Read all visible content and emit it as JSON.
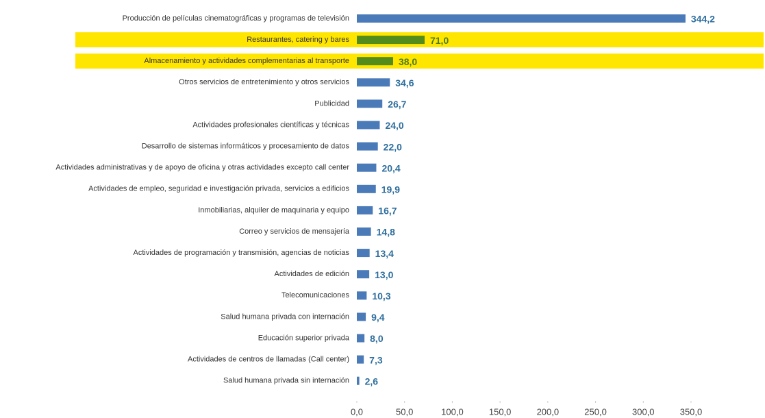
{
  "chart_data": {
    "type": "barh",
    "categories": [
      "Producción de películas cinematográficas y programas de televisión",
      "Restaurantes, catering y bares",
      "Almacenamiento y actividades complementarias al transporte",
      "Otros servicios de entretenimiento y otros servicios",
      "Publicidad",
      "Actividades profesionales científicas y técnicas",
      "Desarrollo de sistemas informáticos y procesamiento de datos",
      "Actividades administrativas y de apoyo de oficina y otras actividades excepto call center",
      "Actividades de empleo, seguridad e investigación privada, servicios a edificios",
      "Inmobiliarias, alquiler de maquinaria y equipo",
      "Correo y servicios de mensajería",
      "Actividades de programación y transmisión,  agencias de noticias",
      "Actividades de edición",
      "Telecomunicaciones",
      "Salud humana privada con internación",
      "Educación superior privada",
      "Actividades de centros de llamadas (Call center)",
      "Salud humana privada sin internación"
    ],
    "values": [
      344.2,
      71.0,
      38.0,
      34.6,
      26.7,
      24.0,
      22.0,
      20.4,
      19.9,
      16.7,
      14.8,
      13.4,
      13.0,
      10.3,
      9.4,
      8.0,
      7.3,
      2.6
    ],
    "value_labels": [
      "344,2",
      "71,0",
      "38,0",
      "34,6",
      "26,7",
      "24,0",
      "22,0",
      "20,4",
      "19,9",
      "16,7",
      "14,8",
      "13,4",
      "13,0",
      "10,3",
      "9,4",
      "8,0",
      "7,3",
      "2,6"
    ],
    "color": "#4a7ab8",
    "label_color": "#2e6e9e",
    "highlighted": [
      1,
      2
    ],
    "highlight_color": "#548c1c",
    "highlight_label_color": "#4a7a1c",
    "highlight_band_color": "#ffe600",
    "xlim": [
      0,
      350
    ],
    "xticks": [
      {
        "value": 0,
        "label": "0,0"
      },
      {
        "value": 50,
        "label": "50,0"
      },
      {
        "value": 100,
        "label": "100,0"
      },
      {
        "value": 150,
        "label": "150,0"
      },
      {
        "value": 200,
        "label": "200,0"
      },
      {
        "value": 250,
        "label": "250,0"
      },
      {
        "value": 300,
        "label": "300,0"
      },
      {
        "value": 350,
        "label": "350,0"
      }
    ],
    "grid": false
  }
}
